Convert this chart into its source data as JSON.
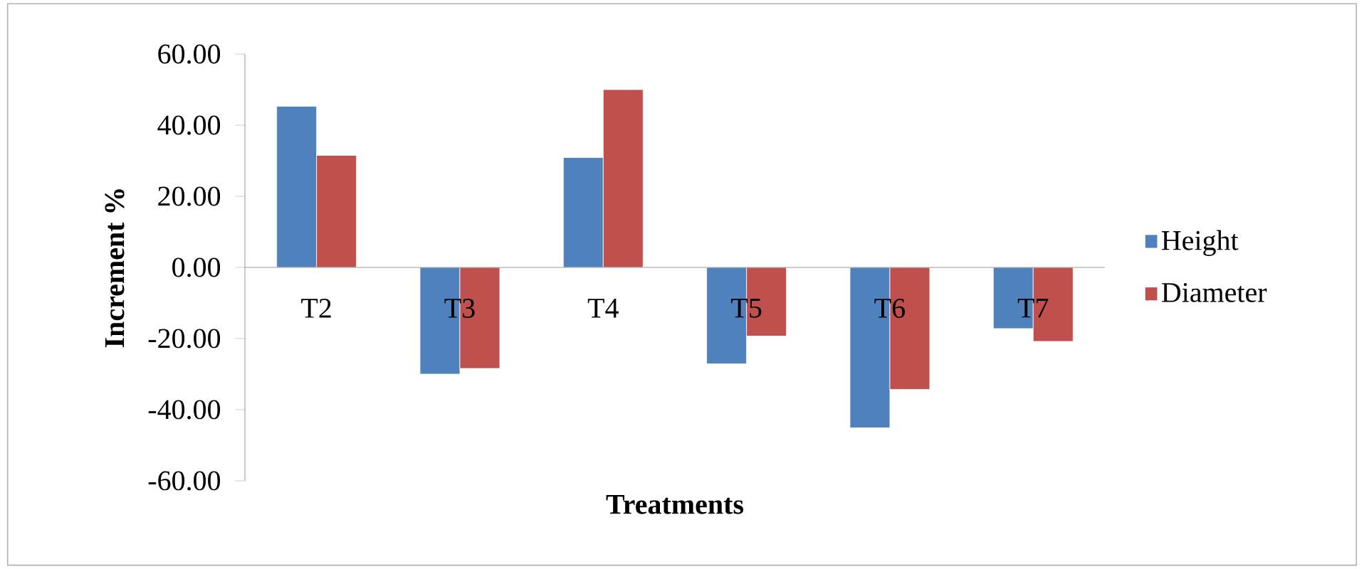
{
  "chart_data": {
    "type": "bar",
    "xlabel": "Treatments",
    "ylabel": "Increment %",
    "categories": [
      "T2",
      "T3",
      "T4",
      "T5",
      "T6",
      "T7"
    ],
    "series": [
      {
        "name": "Height",
        "color": "#4f81bd",
        "values": [
          45.3,
          -30.0,
          30.9,
          -27.1,
          -45.1,
          -17.2
        ]
      },
      {
        "name": "Diameter",
        "color": "#c0504d",
        "values": [
          31.5,
          -28.4,
          50.0,
          -19.3,
          -34.3,
          -20.8
        ]
      }
    ],
    "ylim": [
      -60,
      60
    ],
    "yticks": [
      {
        "value": -60,
        "label": "-60.00"
      },
      {
        "value": -40,
        "label": "-40.00"
      },
      {
        "value": -20,
        "label": "-20.00"
      },
      {
        "value": 0,
        "label": "0.00"
      },
      {
        "value": 20,
        "label": "20.00"
      },
      {
        "value": 40,
        "label": "40.00"
      },
      {
        "value": 60,
        "label": "60.00"
      }
    ],
    "legend": "right",
    "grid": false
  }
}
